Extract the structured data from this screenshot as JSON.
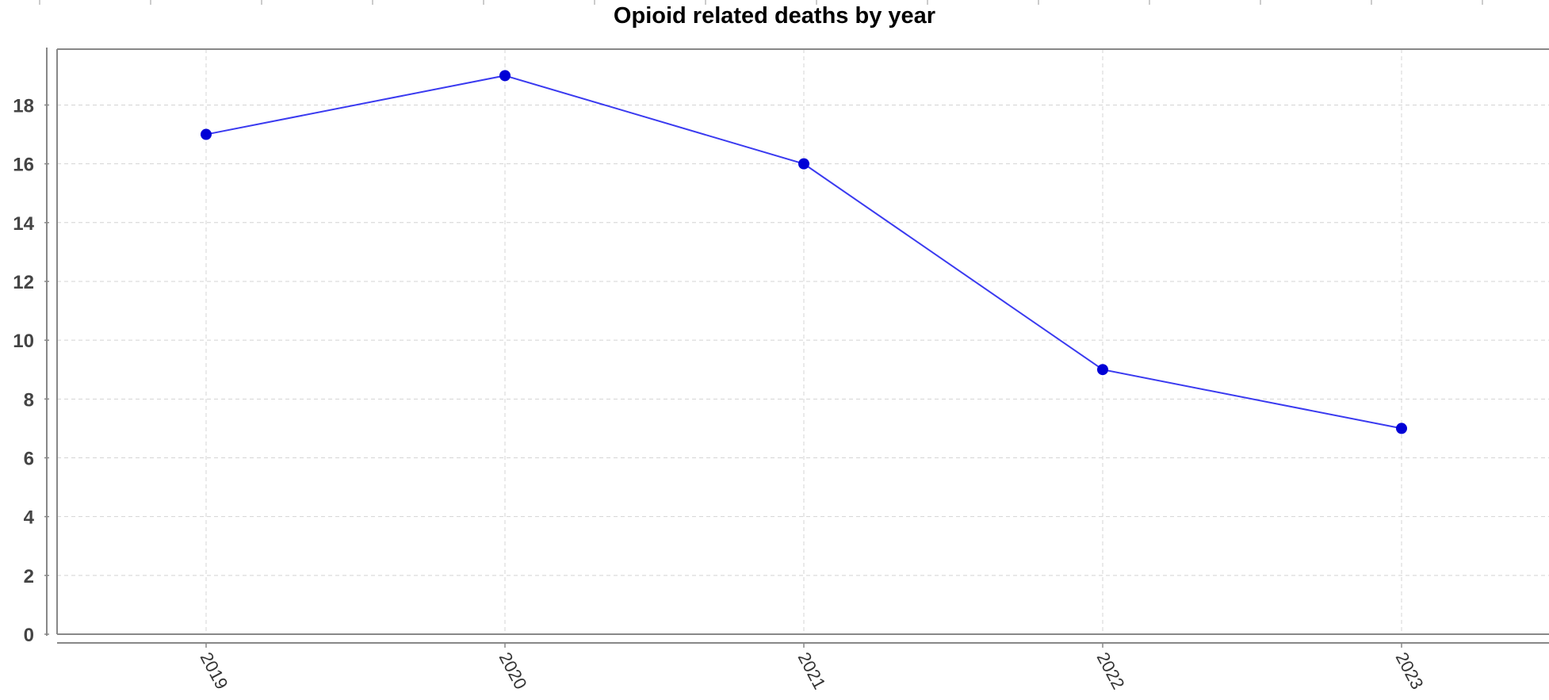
{
  "chart_data": {
    "type": "line",
    "title": "Opioid related deaths by year",
    "xlabel": "",
    "ylabel": "",
    "categories": [
      "2019",
      "2020",
      "2021",
      "2022",
      "2023"
    ],
    "series": [
      {
        "values": [
          17,
          19,
          16,
          9,
          7
        ]
      }
    ],
    "ylim": [
      0,
      19.9
    ],
    "yticks": [
      "0",
      "2",
      "4",
      "6",
      "8",
      "10",
      "12",
      "14",
      "16",
      "18"
    ],
    "xtick_rotation": "rotated",
    "grid": true,
    "legend": "none",
    "colors": {
      "line": "#3a3af0",
      "marker": "#0000d6",
      "grid": "#d4d4d4",
      "axis": "#888888",
      "tick_label": "#444444",
      "title": "#000000"
    }
  }
}
